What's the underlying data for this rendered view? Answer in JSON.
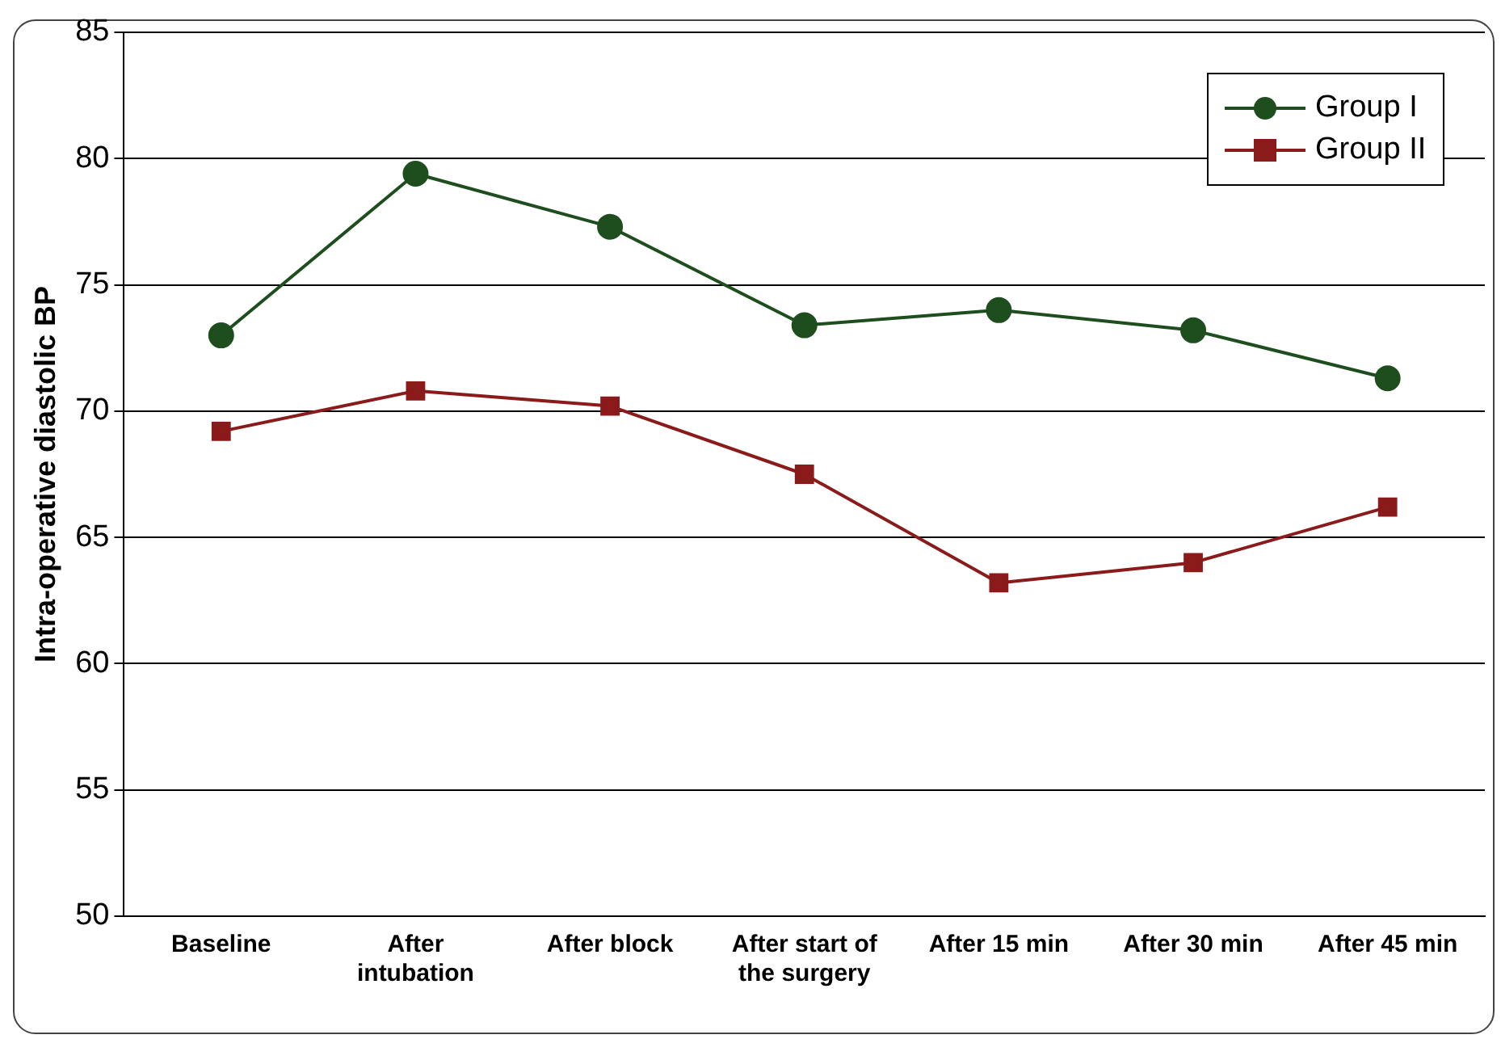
{
  "chart_data": {
    "type": "line",
    "ylabel": "Intra-operative diastolic BP",
    "categories": [
      "Baseline",
      "After intubation",
      "After block",
      "After start of the surgery",
      "After 15 min",
      "After 30 min",
      "After 45 min"
    ],
    "series": [
      {
        "name": "Group I",
        "color": "#1e4d1e",
        "marker": "circle",
        "values": [
          73.0,
          79.4,
          77.3,
          73.4,
          74.0,
          73.2,
          71.3
        ]
      },
      {
        "name": "Group II",
        "color": "#8b1a1a",
        "marker": "square",
        "values": [
          69.2,
          70.8,
          70.2,
          67.5,
          63.2,
          64.0,
          66.2
        ]
      }
    ],
    "ylim": [
      50,
      85
    ],
    "yticks": [
      50,
      55,
      60,
      65,
      70,
      75,
      80,
      85
    ],
    "grid": "y",
    "legend": "top right",
    "line_style": "solid"
  }
}
